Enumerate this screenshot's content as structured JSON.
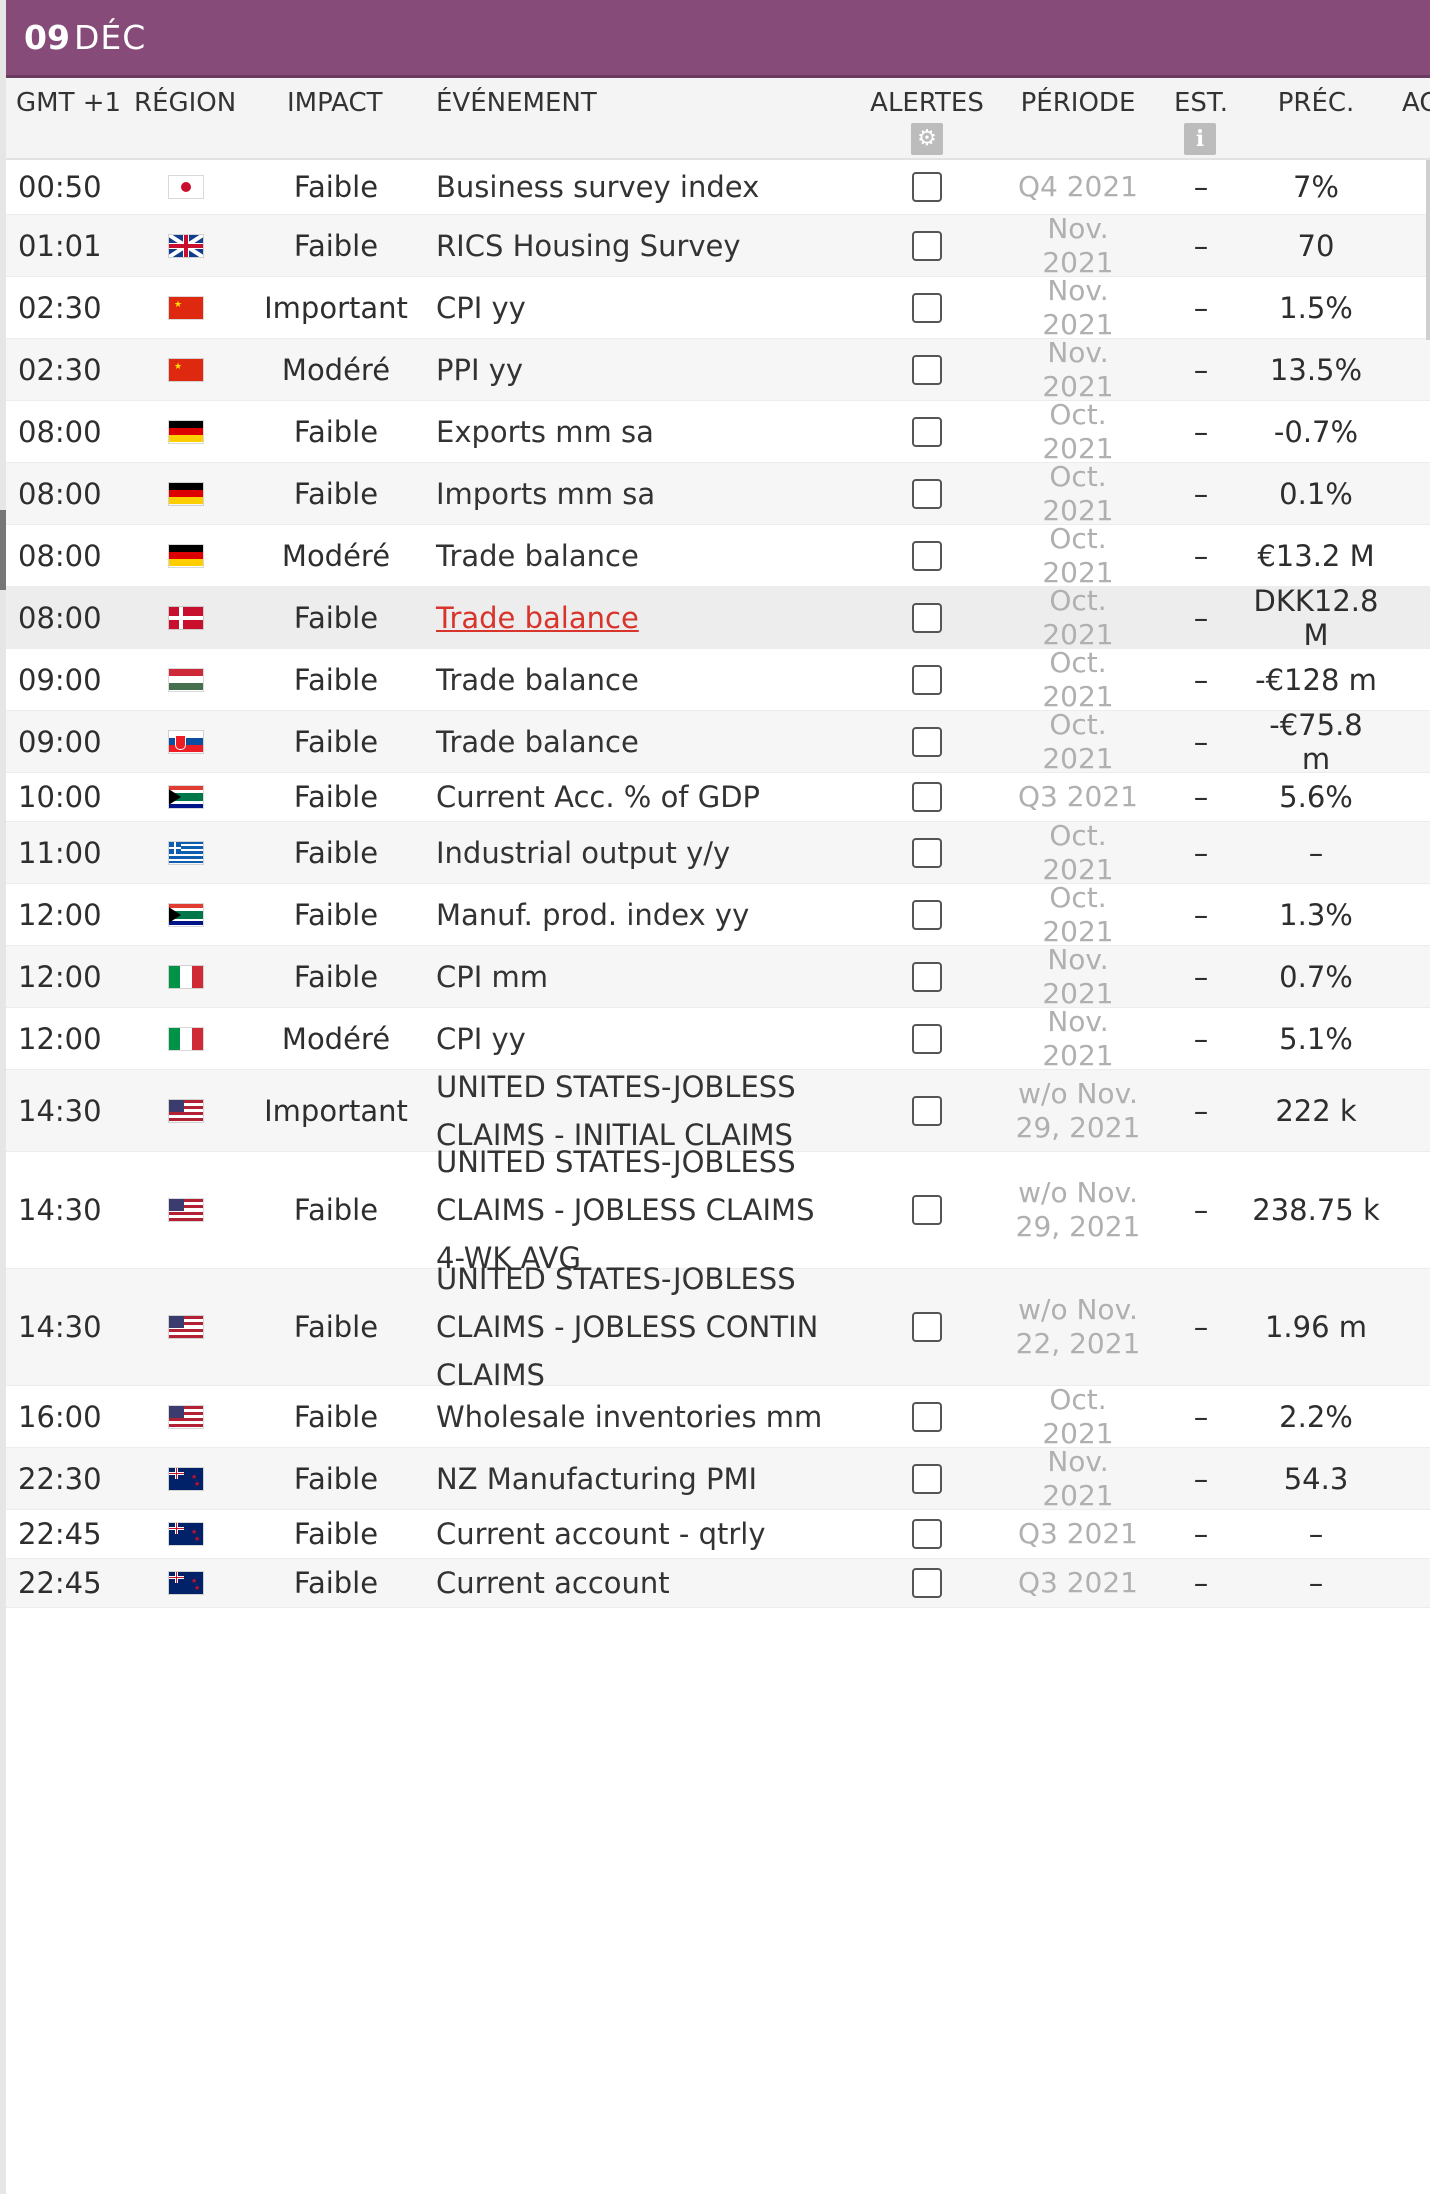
{
  "date_bar": {
    "day": "09",
    "month": "DÉC"
  },
  "header": {
    "gmt": "GMT +1",
    "region": "RÉGION",
    "impact": "IMPACT",
    "event": "ÉVÉNEMENT",
    "alerts": "ALERTES",
    "period": "PÉRIODE",
    "est": "EST.",
    "prev": "PRÉC.",
    "act": "AC",
    "alerts_icon": "gear-icon",
    "est_icon": "info-icon"
  },
  "rows": [
    {
      "time": "00:50",
      "flag": "japan",
      "impact": "Faible",
      "event": [
        "Business survey index"
      ],
      "period": [
        "Q4 2021"
      ],
      "est": "–",
      "prev": [
        "7%"
      ]
    },
    {
      "time": "01:01",
      "flag": "uk",
      "impact": "Faible",
      "event": [
        "RICS Housing Survey"
      ],
      "period": [
        "Nov.",
        "2021"
      ],
      "est": "–",
      "prev": [
        "70"
      ]
    },
    {
      "time": "02:30",
      "flag": "china",
      "impact": "Important",
      "event": [
        "CPI yy"
      ],
      "period": [
        "Nov.",
        "2021"
      ],
      "est": "–",
      "prev": [
        "1.5%"
      ]
    },
    {
      "time": "02:30",
      "flag": "china",
      "impact": "Modéré",
      "event": [
        "PPI yy"
      ],
      "period": [
        "Nov.",
        "2021"
      ],
      "est": "–",
      "prev": [
        "13.5%"
      ]
    },
    {
      "time": "08:00",
      "flag": "germany",
      "impact": "Faible",
      "event": [
        "Exports mm sa"
      ],
      "period": [
        "Oct.",
        "2021"
      ],
      "est": "–",
      "prev": [
        "-0.7%"
      ]
    },
    {
      "time": "08:00",
      "flag": "germany",
      "impact": "Faible",
      "event": [
        "Imports mm sa"
      ],
      "period": [
        "Oct.",
        "2021"
      ],
      "est": "–",
      "prev": [
        "0.1%"
      ]
    },
    {
      "time": "08:00",
      "flag": "germany",
      "impact": "Modéré",
      "event": [
        "Trade balance"
      ],
      "period": [
        "Oct.",
        "2021"
      ],
      "est": "–",
      "prev": [
        "€13.2 M"
      ]
    },
    {
      "time": "08:00",
      "flag": "denmark",
      "impact": "Faible",
      "event": [
        "Trade balance"
      ],
      "period": [
        "Oct.",
        "2021"
      ],
      "est": "–",
      "prev": [
        "DKK12.8",
        "M"
      ]
    },
    {
      "time": "09:00",
      "flag": "hungary",
      "impact": "Faible",
      "event": [
        "Trade balance"
      ],
      "period": [
        "Oct.",
        "2021"
      ],
      "est": "–",
      "prev": [
        "-€128 m"
      ]
    },
    {
      "time": "09:00",
      "flag": "slovakia",
      "impact": "Faible",
      "event": [
        "Trade balance"
      ],
      "period": [
        "Oct.",
        "2021"
      ],
      "est": "–",
      "prev": [
        "-€75.8",
        "m"
      ]
    },
    {
      "time": "10:00",
      "flag": "south-africa",
      "impact": "Faible",
      "event": [
        "Current Acc. % of GDP"
      ],
      "period": [
        "Q3 2021"
      ],
      "est": "–",
      "prev": [
        "5.6%"
      ]
    },
    {
      "time": "11:00",
      "flag": "greece",
      "impact": "Faible",
      "event": [
        "Industrial output y/y"
      ],
      "period": [
        "Oct.",
        "2021"
      ],
      "est": "–",
      "prev": [
        "–"
      ]
    },
    {
      "time": "12:00",
      "flag": "south-africa",
      "impact": "Faible",
      "event": [
        "Manuf. prod. index yy"
      ],
      "period": [
        "Oct.",
        "2021"
      ],
      "est": "–",
      "prev": [
        "1.3%"
      ]
    },
    {
      "time": "12:00",
      "flag": "italy",
      "impact": "Faible",
      "event": [
        "CPI mm"
      ],
      "period": [
        "Nov.",
        "2021"
      ],
      "est": "–",
      "prev": [
        "0.7%"
      ]
    },
    {
      "time": "12:00",
      "flag": "italy",
      "impact": "Modéré",
      "event": [
        "CPI yy"
      ],
      "period": [
        "Nov.",
        "2021"
      ],
      "est": "–",
      "prev": [
        "5.1%"
      ]
    },
    {
      "time": "14:30",
      "flag": "usa",
      "impact": "Important",
      "event": [
        "UNITED STATES-JOBLESS",
        "CLAIMS - INITIAL CLAIMS"
      ],
      "period": [
        "w/o Nov.",
        "29, 2021"
      ],
      "est": "–",
      "prev": [
        "222 k"
      ]
    },
    {
      "time": "14:30",
      "flag": "usa",
      "impact": "Faible",
      "event": [
        "UNITED STATES-JOBLESS",
        "CLAIMS - JOBLESS CLAIMS",
        "4-WK AVG"
      ],
      "period": [
        "w/o Nov.",
        "29, 2021"
      ],
      "est": "–",
      "prev": [
        "238.75 k"
      ]
    },
    {
      "time": "14:30",
      "flag": "usa",
      "impact": "Faible",
      "event": [
        "UNITED STATES-JOBLESS",
        "CLAIMS - JOBLESS CONTIN",
        "CLAIMS"
      ],
      "period": [
        "w/o Nov.",
        "22, 2021"
      ],
      "est": "–",
      "prev": [
        "1.96 m"
      ]
    },
    {
      "time": "16:00",
      "flag": "usa",
      "impact": "Faible",
      "event": [
        "Wholesale inventories mm"
      ],
      "period": [
        "Oct.",
        "2021"
      ],
      "est": "–",
      "prev": [
        "2.2%"
      ]
    },
    {
      "time": "22:30",
      "flag": "new-zealand",
      "impact": "Faible",
      "event": [
        "NZ Manufacturing PMI"
      ],
      "period": [
        "Nov.",
        "2021"
      ],
      "est": "–",
      "prev": [
        "54.3"
      ]
    },
    {
      "time": "22:45",
      "flag": "new-zealand",
      "impact": "Faible",
      "event": [
        "Current account - qtrly"
      ],
      "period": [
        "Q3 2021"
      ],
      "est": "–",
      "prev": [
        "–"
      ]
    },
    {
      "time": "22:45",
      "flag": "new-zealand",
      "impact": "Faible",
      "event": [
        "Current account"
      ],
      "period": [
        "Q3 2021"
      ],
      "est": "–",
      "prev": [
        "–"
      ]
    }
  ]
}
